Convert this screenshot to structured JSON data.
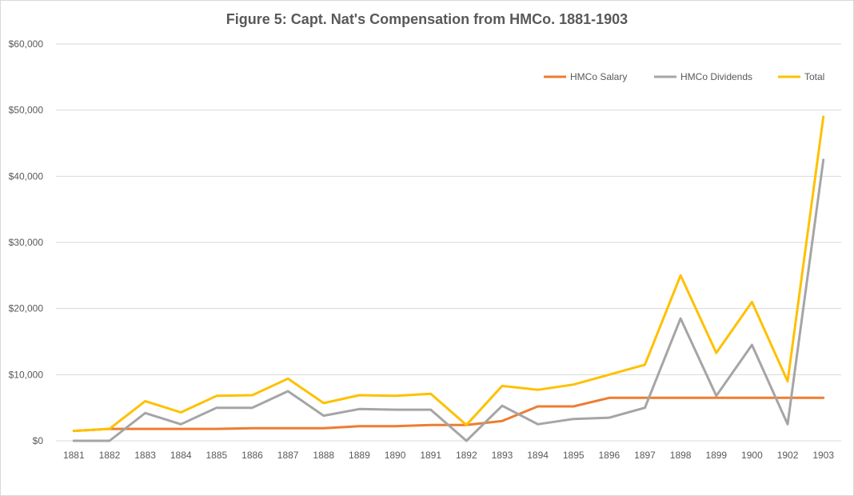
{
  "chart_data": {
    "type": "line",
    "title": "Figure 5: Capt. Nat's Compensation from HMCo. 1881-1903",
    "xlabel": "",
    "ylabel": "",
    "categories": [
      "1881",
      "1882",
      "1883",
      "1884",
      "1885",
      "1886",
      "1887",
      "1888",
      "1889",
      "1890",
      "1891",
      "1892",
      "1893",
      "1894",
      "1895",
      "1896",
      "1897",
      "1898",
      "1899",
      "1900",
      "1902",
      "1903"
    ],
    "ylim": [
      0,
      60000
    ],
    "y_ticks": [
      "$0",
      "$10,000",
      "$20,000",
      "$30,000",
      "$40,000",
      "$50,000",
      "$60,000"
    ],
    "y_tick_values": [
      0,
      10000,
      20000,
      30000,
      40000,
      50000,
      60000
    ],
    "grid": true,
    "legend_position": "top-right",
    "series": [
      {
        "name": "HMCo Salary",
        "color": "#ed7d31",
        "values": [
          1500,
          1800,
          1800,
          1800,
          1800,
          1900,
          1900,
          1900,
          2200,
          2200,
          2400,
          2400,
          3000,
          5200,
          5200,
          6500,
          6500,
          6500,
          6500,
          6500,
          6500,
          6500
        ]
      },
      {
        "name": "HMCo Dividends",
        "color": "#a5a5a5",
        "values": [
          0,
          0,
          4200,
          2500,
          5000,
          5000,
          7500,
          3800,
          4800,
          4700,
          4700,
          0,
          5300,
          2500,
          3300,
          3500,
          5000,
          18500,
          6800,
          14500,
          2500,
          42500
        ]
      },
      {
        "name": "Total",
        "color": "#ffc000",
        "values": [
          1500,
          1800,
          6000,
          4300,
          6800,
          6900,
          9400,
          5700,
          6900,
          6800,
          7100,
          2400,
          8300,
          7700,
          8500,
          10000,
          11500,
          25000,
          13300,
          21000,
          9000,
          49000
        ]
      }
    ]
  }
}
